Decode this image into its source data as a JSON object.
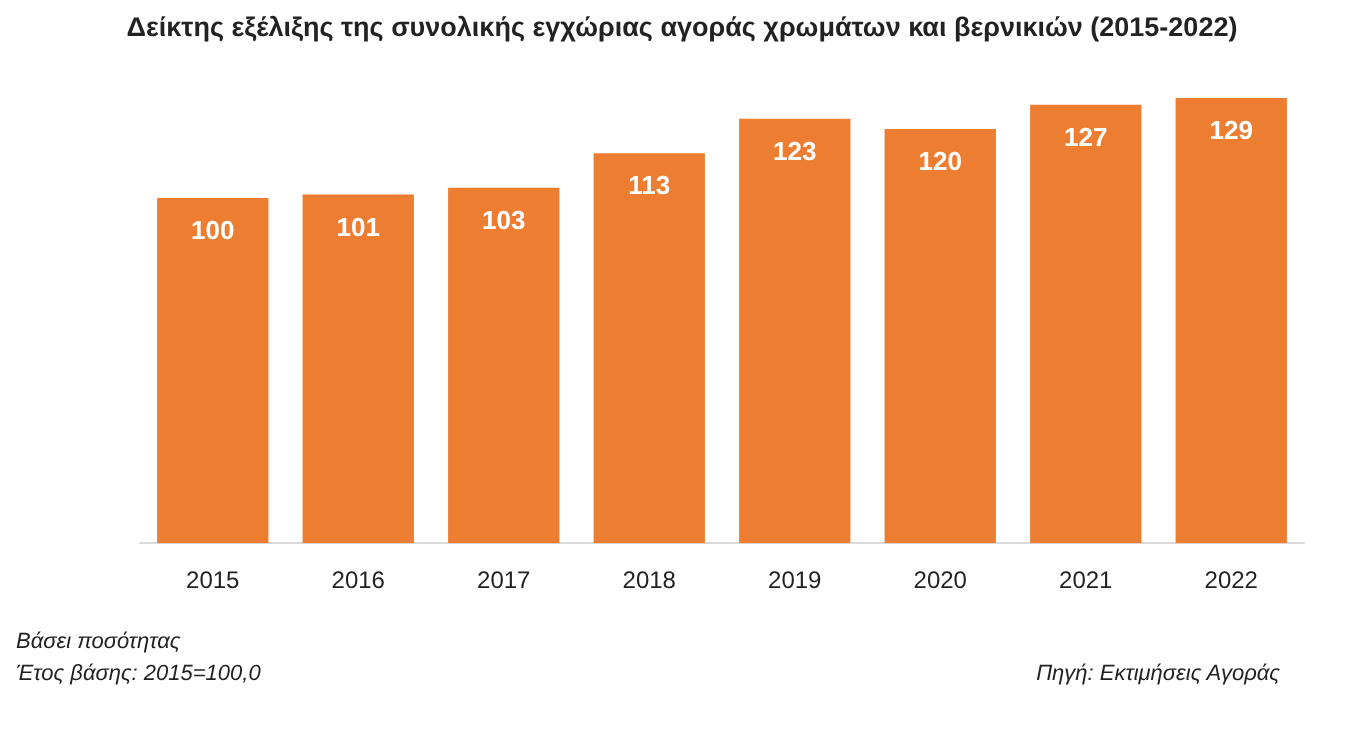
{
  "chart_data": {
    "type": "bar",
    "title": "Δείκτης εξέλιξης της συνολικής εγχώριας αγοράς χρωμάτων και βερνικιών (2015-2022)",
    "categories": [
      "2015",
      "2016",
      "2017",
      "2018",
      "2019",
      "2020",
      "2021",
      "2022"
    ],
    "values": [
      100,
      101,
      103,
      113,
      123,
      120,
      127,
      129
    ],
    "color": "#ed7d31",
    "tick_labels": "x",
    "grid": false,
    "legend": false,
    "data_labels": true,
    "annotations": [
      "Βάσει ποσότητας",
      "Έτος βάσης: 2015=100,0",
      "Πηγή: Εκτιμήσεις Αγοράς"
    ]
  }
}
